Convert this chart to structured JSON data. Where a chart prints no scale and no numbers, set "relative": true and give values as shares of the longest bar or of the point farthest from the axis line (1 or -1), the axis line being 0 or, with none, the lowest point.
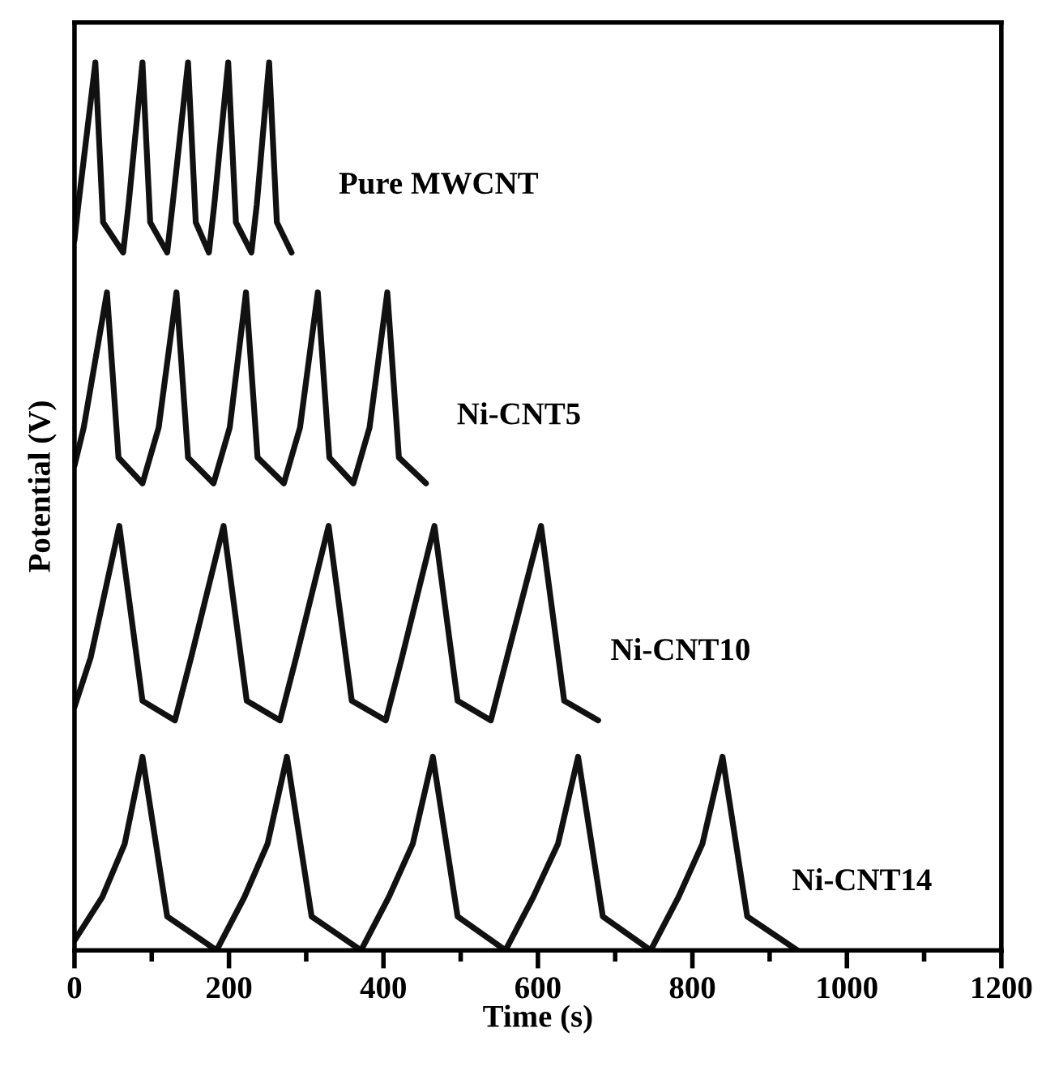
{
  "chart_data": {
    "type": "line",
    "relative": true,
    "xlabel": "Time (s)",
    "ylabel": "Potential (V)",
    "xlim": [
      0,
      1200
    ],
    "xticks": [
      0,
      {
        "value": 100,
        "label": null
      },
      200,
      {
        "value": 300,
        "label": null
      },
      400,
      {
        "value": 500,
        "label": null
      },
      600,
      {
        "value": 700,
        "label": null
      },
      800,
      {
        "value": 900,
        "label": null
      },
      1000,
      {
        "value": 1100,
        "label": null
      },
      1200
    ],
    "tick_labels": "x",
    "grid": false,
    "legend": false,
    "marker": "none",
    "line_style": "solid",
    "series": [
      {
        "name": "Pure MWCNT",
        "color": "#111111",
        "x": [
          0,
          5,
          27,
          37,
          63,
          70,
          88,
          98,
          120,
          127,
          147,
          157,
          174,
          181,
          199,
          209,
          229,
          236,
          252,
          262,
          281
        ],
        "values": [
          0.8,
          0.84,
          1.0,
          0.82,
          0.786,
          0.84,
          1.0,
          0.82,
          0.786,
          0.84,
          1.0,
          0.82,
          0.786,
          0.84,
          1.0,
          0.82,
          0.786,
          0.84,
          1.0,
          0.82,
          0.786
        ]
      },
      {
        "name": "Ni-CNT5",
        "color": "#111111",
        "x": [
          0,
          12,
          42,
          57,
          88,
          109,
          132,
          147,
          180,
          201,
          222,
          237,
          271,
          292,
          315,
          330,
          361,
          382,
          405,
          420,
          455
        ],
        "values": [
          0.546,
          0.589,
          0.741,
          0.555,
          0.526,
          0.589,
          0.741,
          0.555,
          0.526,
          0.589,
          0.741,
          0.555,
          0.526,
          0.589,
          0.741,
          0.555,
          0.526,
          0.589,
          0.741,
          0.555,
          0.526
        ]
      },
      {
        "name": "Ni-CNT10",
        "color": "#111111",
        "x": [
          0,
          21,
          58,
          88,
          130,
          151,
          193,
          223,
          266,
          287,
          329,
          359,
          403,
          424,
          466,
          496,
          539,
          560,
          604,
          634,
          678
        ],
        "values": [
          0.274,
          0.33,
          0.478,
          0.281,
          0.259,
          0.33,
          0.478,
          0.281,
          0.259,
          0.33,
          0.478,
          0.281,
          0.259,
          0.33,
          0.478,
          0.281,
          0.259,
          0.33,
          0.478,
          0.281,
          0.259
        ]
      },
      {
        "name": "Ni-CNT14",
        "color": "#111111",
        "x": [
          0,
          36,
          65,
          88,
          120,
          184,
          220,
          250,
          275,
          307,
          371,
          407,
          438,
          464,
          496,
          558,
          594,
          626,
          652,
          684,
          746,
          782,
          813,
          839,
          871,
          936
        ],
        "values": [
          0.011,
          0.06,
          0.12,
          0.218,
          0.038,
          0,
          0.06,
          0.12,
          0.218,
          0.038,
          0,
          0.06,
          0.12,
          0.218,
          0.038,
          0,
          0.06,
          0.12,
          0.218,
          0.038,
          0,
          0.06,
          0.12,
          0.218,
          0.038,
          0
        ]
      }
    ]
  }
}
